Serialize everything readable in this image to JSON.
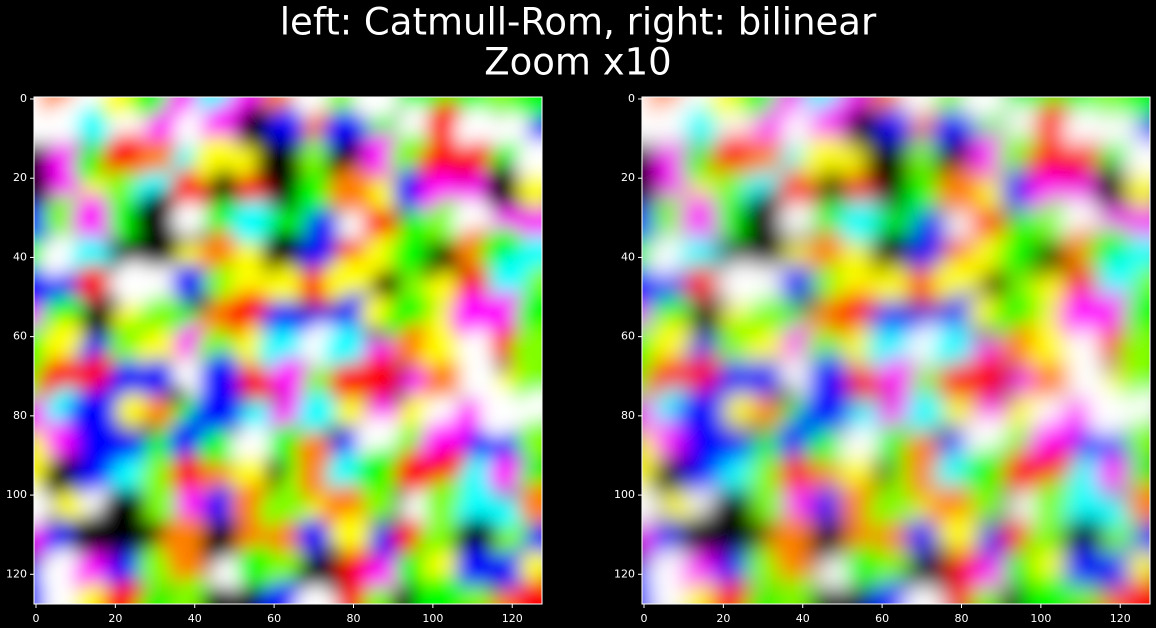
{
  "title_lines": [
    "left: Catmull-Rom, right: bilinear",
    "Zoom x10"
  ],
  "chart_data": [
    {
      "type": "image",
      "xlim": [
        -0.5,
        127.5
      ],
      "ylim": [
        127.5,
        -0.5
      ],
      "xticks": [
        0,
        20,
        40,
        60,
        80,
        100,
        120
      ],
      "yticks": [
        0,
        20,
        40,
        60,
        80,
        100,
        120
      ]
    },
    {
      "type": "image",
      "xlim": [
        -0.5,
        127.5
      ],
      "ylim": [
        127.5,
        -0.5
      ],
      "xticks": [
        0,
        20,
        40,
        60,
        80,
        100,
        120
      ],
      "yticks": [
        0,
        20,
        40,
        60,
        80,
        100,
        120
      ]
    }
  ]
}
